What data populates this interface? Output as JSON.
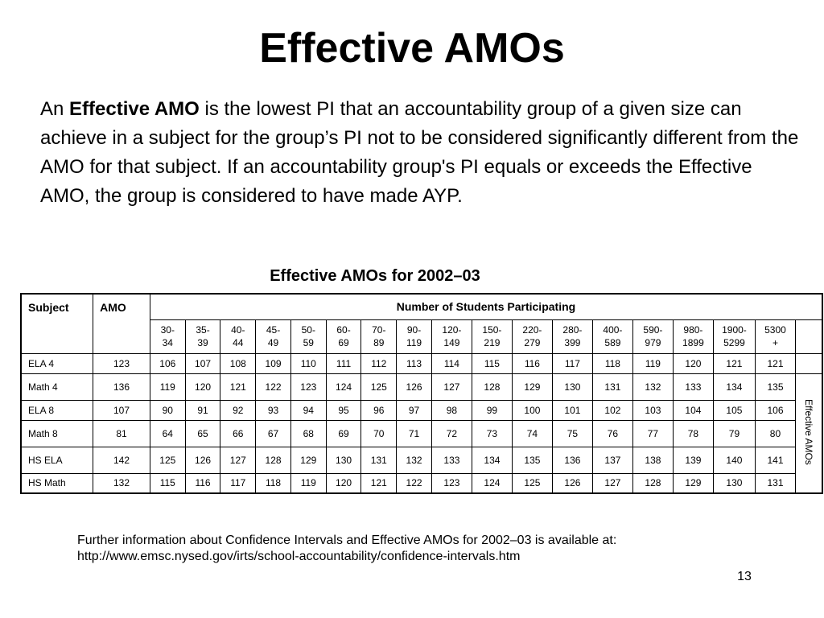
{
  "slide": {
    "title": "Effective AMOs",
    "body": {
      "lead": "An ",
      "bold": "Effective AMO",
      "rest": " is the lowest PI that an accountability group of a given size can achieve in a subject for the group’s PI not to be considered significantly different from the AMO for that subject. If an accountability group's PI equals or exceeds the Effective AMO, the group is considered to have made AYP."
    },
    "table_caption": "Effective AMOs for 2002–03",
    "footnote_line1": "Further information about Confidence Intervals and Effective AMOs for 2002–03 is available at:",
    "footnote_line2": "http://www.emsc.nysed.gov/irts/school-accountability/confidence-intervals.htm",
    "page_number": "13"
  },
  "table": {
    "headers": {
      "subject": "Subject",
      "amo": "AMO",
      "group": "Number of Students Participating",
      "side_label": "Effective AMOs"
    },
    "ranges": [
      [
        "30-",
        "34"
      ],
      [
        "35-",
        "39"
      ],
      [
        "40-",
        "44"
      ],
      [
        "45-",
        "49"
      ],
      [
        "50-",
        "59"
      ],
      [
        "60-",
        "69"
      ],
      [
        "70-",
        "89"
      ],
      [
        "90-",
        "119"
      ],
      [
        "120-",
        "149"
      ],
      [
        "150-",
        "219"
      ],
      [
        "220-",
        "279"
      ],
      [
        "280-",
        "399"
      ],
      [
        "400-",
        "589"
      ],
      [
        "590-",
        "979"
      ],
      [
        "980-",
        "1899"
      ],
      [
        "1900-",
        "5299"
      ],
      [
        "5300",
        "+"
      ]
    ],
    "rows": [
      {
        "subject": "ELA 4",
        "amo": "123",
        "values": [
          "106",
          "107",
          "108",
          "109",
          "110",
          "111",
          "112",
          "113",
          "114",
          "115",
          "116",
          "117",
          "118",
          "119",
          "120",
          "121",
          "121"
        ]
      },
      {
        "subject": "Math 4",
        "amo": "136",
        "values": [
          "119",
          "120",
          "121",
          "122",
          "123",
          "124",
          "125",
          "126",
          "127",
          "128",
          "129",
          "130",
          "131",
          "132",
          "133",
          "134",
          "135"
        ]
      },
      {
        "subject": "ELA 8",
        "amo": "107",
        "values": [
          "90",
          "91",
          "92",
          "93",
          "94",
          "95",
          "96",
          "97",
          "98",
          "99",
          "100",
          "101",
          "102",
          "103",
          "104",
          "105",
          "106"
        ]
      },
      {
        "subject": "Math 8",
        "amo": "81",
        "values": [
          "64",
          "65",
          "66",
          "67",
          "68",
          "69",
          "70",
          "71",
          "72",
          "73",
          "74",
          "75",
          "76",
          "77",
          "78",
          "79",
          "80"
        ]
      },
      {
        "subject": "HS ELA",
        "amo": "142",
        "values": [
          "125",
          "126",
          "127",
          "128",
          "129",
          "130",
          "131",
          "132",
          "133",
          "134",
          "135",
          "136",
          "137",
          "138",
          "139",
          "140",
          "141"
        ]
      },
      {
        "subject": "HS Math",
        "amo": "132",
        "values": [
          "115",
          "116",
          "117",
          "118",
          "119",
          "120",
          "121",
          "122",
          "123",
          "124",
          "125",
          "126",
          "127",
          "128",
          "129",
          "130",
          "131"
        ]
      }
    ]
  }
}
